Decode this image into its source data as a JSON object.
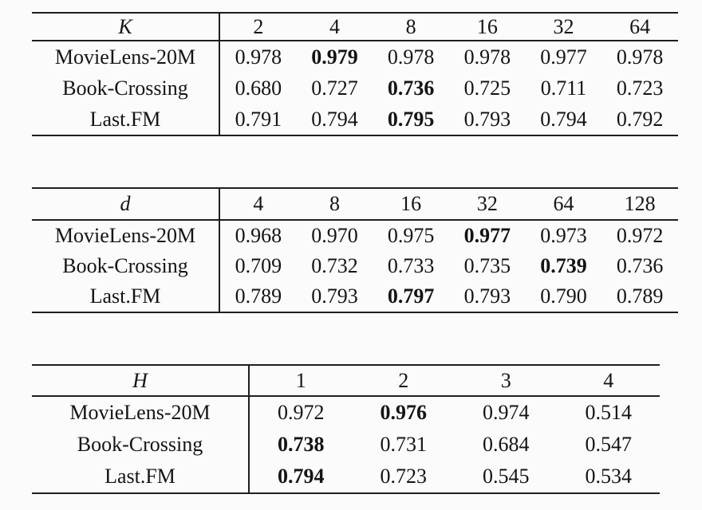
{
  "page": {
    "background_color": "#fbfbfb",
    "rule_color": "#1e1e1e",
    "text_color": "#141414",
    "description": "Three hyperparameter sensitivity tables (AUC results) from an academic paper"
  },
  "tables": [
    {
      "id": "sensitivity-to-K",
      "param": "K",
      "col_headers": [
        "2",
        "4",
        "8",
        "16",
        "32",
        "64"
      ],
      "rows": [
        {
          "label": "MovieLens-20M",
          "cells": [
            {
              "v": "0.978"
            },
            {
              "v": "0.979",
              "b": true
            },
            {
              "v": "0.978"
            },
            {
              "v": "0.978"
            },
            {
              "v": "0.977"
            },
            {
              "v": "0.978"
            }
          ]
        },
        {
          "label": "Book-Crossing",
          "cells": [
            {
              "v": "0.680"
            },
            {
              "v": "0.727"
            },
            {
              "v": "0.736",
              "b": true
            },
            {
              "v": "0.725"
            },
            {
              "v": "0.711"
            },
            {
              "v": "0.723"
            }
          ]
        },
        {
          "label": "Last.FM",
          "cells": [
            {
              "v": "0.791"
            },
            {
              "v": "0.794"
            },
            {
              "v": "0.795",
              "b": true
            },
            {
              "v": "0.793"
            },
            {
              "v": "0.794"
            },
            {
              "v": "0.792"
            }
          ]
        }
      ]
    },
    {
      "id": "sensitivity-to-d",
      "param": "d",
      "col_headers": [
        "4",
        "8",
        "16",
        "32",
        "64",
        "128"
      ],
      "rows": [
        {
          "label": "MovieLens-20M",
          "cells": [
            {
              "v": "0.968"
            },
            {
              "v": "0.970"
            },
            {
              "v": "0.975"
            },
            {
              "v": "0.977",
              "b": true
            },
            {
              "v": "0.973"
            },
            {
              "v": "0.972"
            }
          ]
        },
        {
          "label": "Book-Crossing",
          "cells": [
            {
              "v": "0.709"
            },
            {
              "v": "0.732"
            },
            {
              "v": "0.733"
            },
            {
              "v": "0.735"
            },
            {
              "v": "0.739",
              "b": true
            },
            {
              "v": "0.736"
            }
          ]
        },
        {
          "label": "Last.FM",
          "cells": [
            {
              "v": "0.789"
            },
            {
              "v": "0.793"
            },
            {
              "v": "0.797",
              "b": true
            },
            {
              "v": "0.793"
            },
            {
              "v": "0.790"
            },
            {
              "v": "0.789"
            }
          ]
        }
      ]
    },
    {
      "id": "sensitivity-to-H",
      "param": "H",
      "col_headers": [
        "1",
        "2",
        "3",
        "4"
      ],
      "rows": [
        {
          "label": "MovieLens-20M",
          "cells": [
            {
              "v": "0.972"
            },
            {
              "v": "0.976",
              "b": true
            },
            {
              "v": "0.974"
            },
            {
              "v": "0.514"
            }
          ]
        },
        {
          "label": "Book-Crossing",
          "cells": [
            {
              "v": "0.738",
              "b": true
            },
            {
              "v": "0.731"
            },
            {
              "v": "0.684"
            },
            {
              "v": "0.547"
            }
          ]
        },
        {
          "label": "Last.FM",
          "cells": [
            {
              "v": "0.794",
              "b": true
            },
            {
              "v": "0.723"
            },
            {
              "v": "0.545"
            },
            {
              "v": "0.534"
            }
          ]
        }
      ]
    }
  ]
}
